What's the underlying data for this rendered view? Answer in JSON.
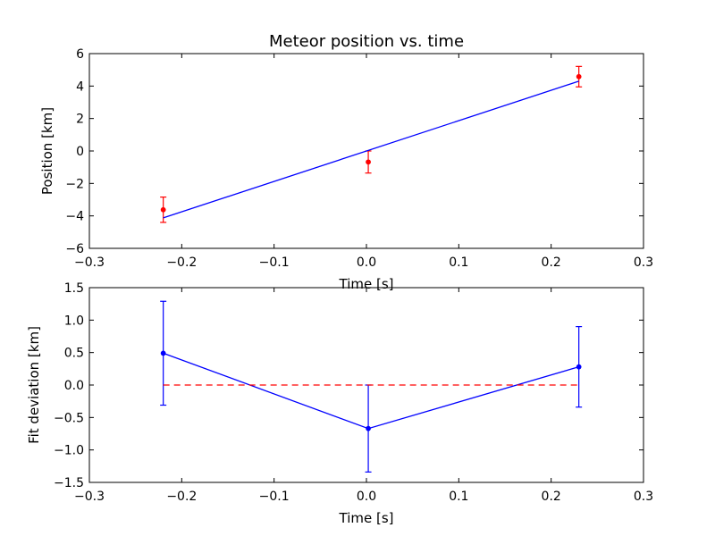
{
  "chart_data": [
    {
      "type": "scatter",
      "title": "Meteor position vs. time",
      "xlabel": "Time [s]",
      "ylabel": "Position [km]",
      "xlim": [
        -0.3,
        0.3
      ],
      "ylim": [
        -6,
        6
      ],
      "xticks": [
        -0.3,
        -0.2,
        -0.1,
        0.0,
        0.1,
        0.2,
        0.3
      ],
      "xtick_labels": [
        "−0.3",
        "−0.2",
        "−0.1",
        "0.0",
        "0.1",
        "0.2",
        "0.3"
      ],
      "yticks": [
        -6,
        -4,
        -2,
        0,
        2,
        4,
        6
      ],
      "ytick_labels": [
        "−6",
        "−4",
        "−2",
        "0",
        "2",
        "4",
        "6"
      ],
      "grid": false,
      "series": [
        {
          "kind": "errorbar-points",
          "color": "#ff0000",
          "x": [
            -0.22,
            0.002,
            0.23
          ],
          "y": [
            -3.62,
            -0.68,
            4.58
          ],
          "err": [
            0.78,
            0.68,
            0.63
          ]
        },
        {
          "kind": "fit-line",
          "color": "#0000ff",
          "x": [
            -0.22,
            0.23
          ],
          "y": [
            -4.12,
            4.3
          ]
        }
      ]
    },
    {
      "type": "line",
      "xlabel": "Time [s]",
      "ylabel": "Fit deviation [km]",
      "xlim": [
        -0.3,
        0.3
      ],
      "ylim": [
        -1.5,
        1.5
      ],
      "xticks": [
        -0.3,
        -0.2,
        -0.1,
        0.0,
        0.1,
        0.2,
        0.3
      ],
      "xtick_labels": [
        "−0.3",
        "−0.2",
        "−0.1",
        "0.0",
        "0.1",
        "0.2",
        "0.3"
      ],
      "yticks": [
        -1.5,
        -1.0,
        -0.5,
        0.0,
        0.5,
        1.0,
        1.5
      ],
      "ytick_labels": [
        "−1.5",
        "−1.0",
        "−0.5",
        "0.0",
        "0.5",
        "1.0",
        "1.5"
      ],
      "grid": false,
      "series": [
        {
          "kind": "errorbar-line",
          "color": "#0000ff",
          "x": [
            -0.22,
            0.002,
            0.23
          ],
          "y": [
            0.49,
            -0.67,
            0.28
          ],
          "err": [
            0.8,
            0.67,
            0.62
          ]
        },
        {
          "kind": "zero-line",
          "color": "#ff0000",
          "dashed": true,
          "x": [
            -0.22,
            0.23
          ],
          "y": [
            0.0,
            0.0
          ]
        }
      ]
    }
  ]
}
